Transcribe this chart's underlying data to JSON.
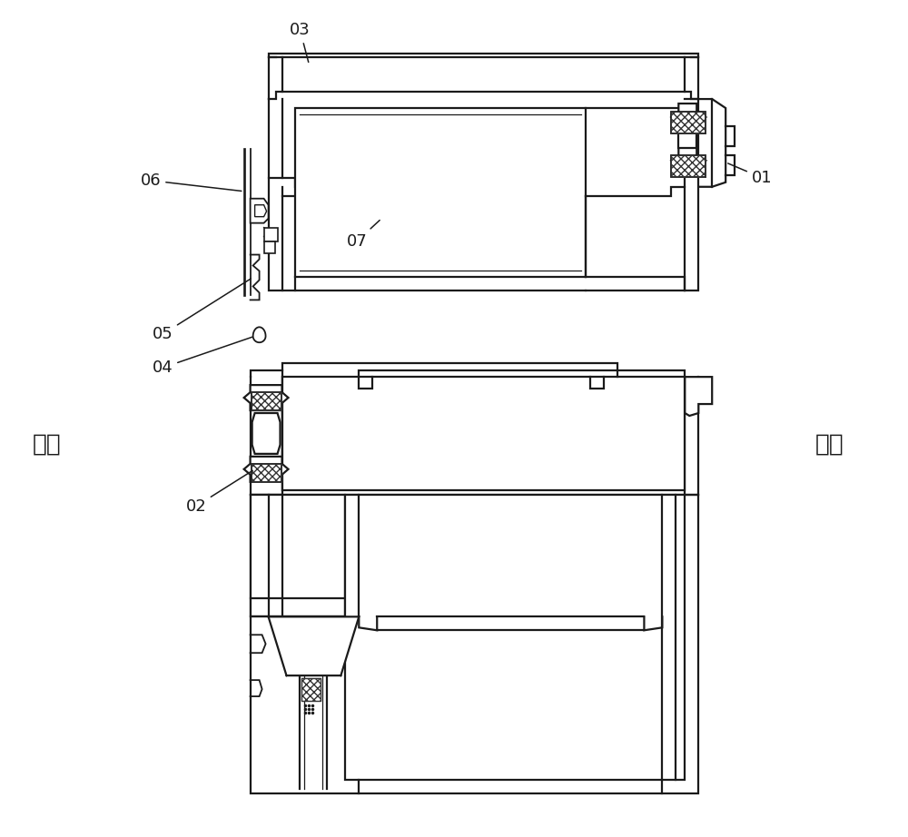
{
  "background_color": "#ffffff",
  "line_color": "#1a1a1a",
  "line_width": 1.6,
  "outdoor_text": "室外",
  "indoor_text": "室内",
  "labels": [
    "01",
    "02",
    "03",
    "04",
    "05",
    "06",
    "07"
  ],
  "figsize": [
    10.0,
    9.22
  ],
  "dpi": 100
}
